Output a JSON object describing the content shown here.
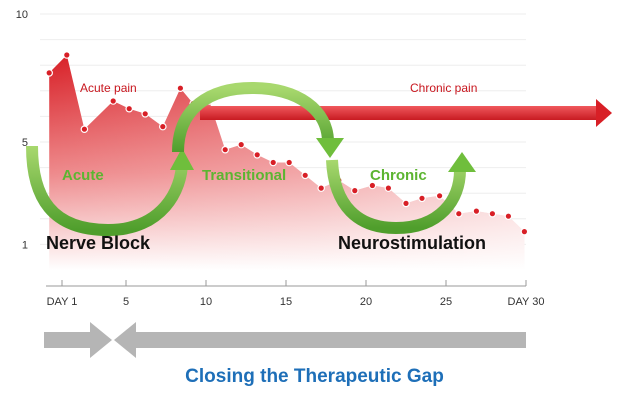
{
  "chart_data": {
    "type": "area",
    "title": "",
    "xlabel": "",
    "ylabel": "",
    "xlim": [
      0,
      30
    ],
    "ylim": [
      0,
      10
    ],
    "x_ticks": [
      {
        "value": 1,
        "label": "DAY 1"
      },
      {
        "value": 5,
        "label": "5"
      },
      {
        "value": 10,
        "label": "10"
      },
      {
        "value": 15,
        "label": "15"
      },
      {
        "value": 20,
        "label": "20"
      },
      {
        "value": 25,
        "label": "25"
      },
      {
        "value": 30,
        "label": "DAY 30"
      }
    ],
    "y_ticks": [
      {
        "value": 10,
        "label": "10"
      },
      {
        "value": 5,
        "label": "5"
      },
      {
        "value": 1,
        "label": "1"
      }
    ],
    "grid": true,
    "series": [
      {
        "name": "",
        "x": [
          0.2,
          1.3,
          2.4,
          4.2,
          5.2,
          6.2,
          7.3,
          8.4,
          9.2,
          10.2,
          11.2,
          12.2,
          13.2,
          14.2,
          15.2,
          16.2,
          17.2,
          18.3,
          19.3,
          20.4,
          21.4,
          22.5,
          23.5,
          24.6,
          25.8,
          26.9,
          27.9,
          28.9,
          29.9
        ],
        "y": [
          7.7,
          8.4,
          5.5,
          6.6,
          6.3,
          6.1,
          5.6,
          7.1,
          6.5,
          6.6,
          4.7,
          4.9,
          4.5,
          4.2,
          4.2,
          3.7,
          3.2,
          3.5,
          3.1,
          3.3,
          3.2,
          2.6,
          2.8,
          2.9,
          2.2,
          2.3,
          2.2,
          2.1,
          1.5
        ]
      }
    ],
    "colors": {
      "area_top": "#d81f26",
      "area_bottom": "#ffffff",
      "markers": "#d81f26",
      "arrows": "#6fbe3c",
      "chronic_arrow": "#e4242b",
      "gap_bar": "#b5b5b5",
      "caption": "#1e6fb8"
    }
  },
  "annotations": {
    "acute_pain": "Acute pain",
    "chronic_pain": "Chronic pain",
    "acute": "Acute",
    "transitional": "Transitional",
    "chronic": "Chronic",
    "nerve_block": "Nerve Block",
    "neurostimulation": "Neurostimulation"
  },
  "caption": "Closing the Therapeutic Gap"
}
